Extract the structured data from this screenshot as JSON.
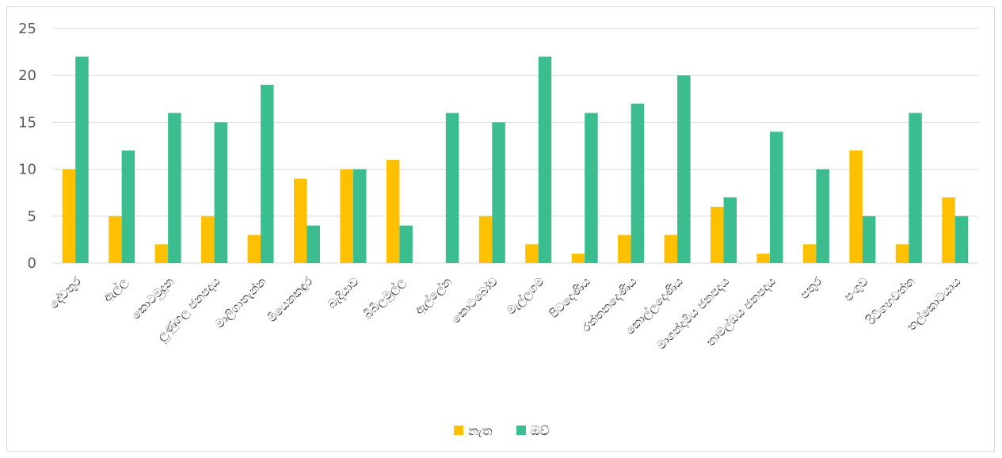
{
  "chart_data": {
    "type": "bar",
    "title": "",
    "xlabel": "",
    "ylabel": "",
    "ylim": [
      0,
      25
    ],
    "yticks": [
      0,
      5,
      10,
      15,
      20,
      25
    ],
    "grid": true,
    "legend_position": "bottom",
    "categories": [
      "දේවතුර",
      "ඇල්ල",
      "කොටමුදුන",
      "ලුණුගල ජනපදය",
      "මාලිගාතැන්න",
      "මියෙනකඳුර",
      "බැදියාව",
      "බිබිලමුල්ල",
      "ඇල්ලේන",
      "කොටබෝව",
      "මැල්ලගම",
      "පිටදෙණිය",
      "රත්තනදෙණිය",
      "කොල්ලදෙණිය",
      "මාගන්දාමිය ජනපදය",
      "තාමල්ඔය ජනපදය",
      "පතුර",
      "පංගුව",
      "රිටිගහවත්ත",
      "තල්කොටයාය"
    ],
    "series": [
      {
        "name": "නැත",
        "color": "#FFC000",
        "values": [
          10,
          5,
          2,
          5,
          3,
          9,
          10,
          11,
          0,
          5,
          2,
          1,
          3,
          3,
          6,
          1,
          2,
          12,
          2,
          7
        ]
      },
      {
        "name": "ඔව්",
        "color": "#3BBD8F",
        "values": [
          22,
          12,
          16,
          15,
          19,
          4,
          10,
          4,
          16,
          15,
          22,
          16,
          17,
          20,
          7,
          14,
          10,
          5,
          16,
          5
        ]
      }
    ],
    "gridline_color": "#d9d9d9"
  }
}
